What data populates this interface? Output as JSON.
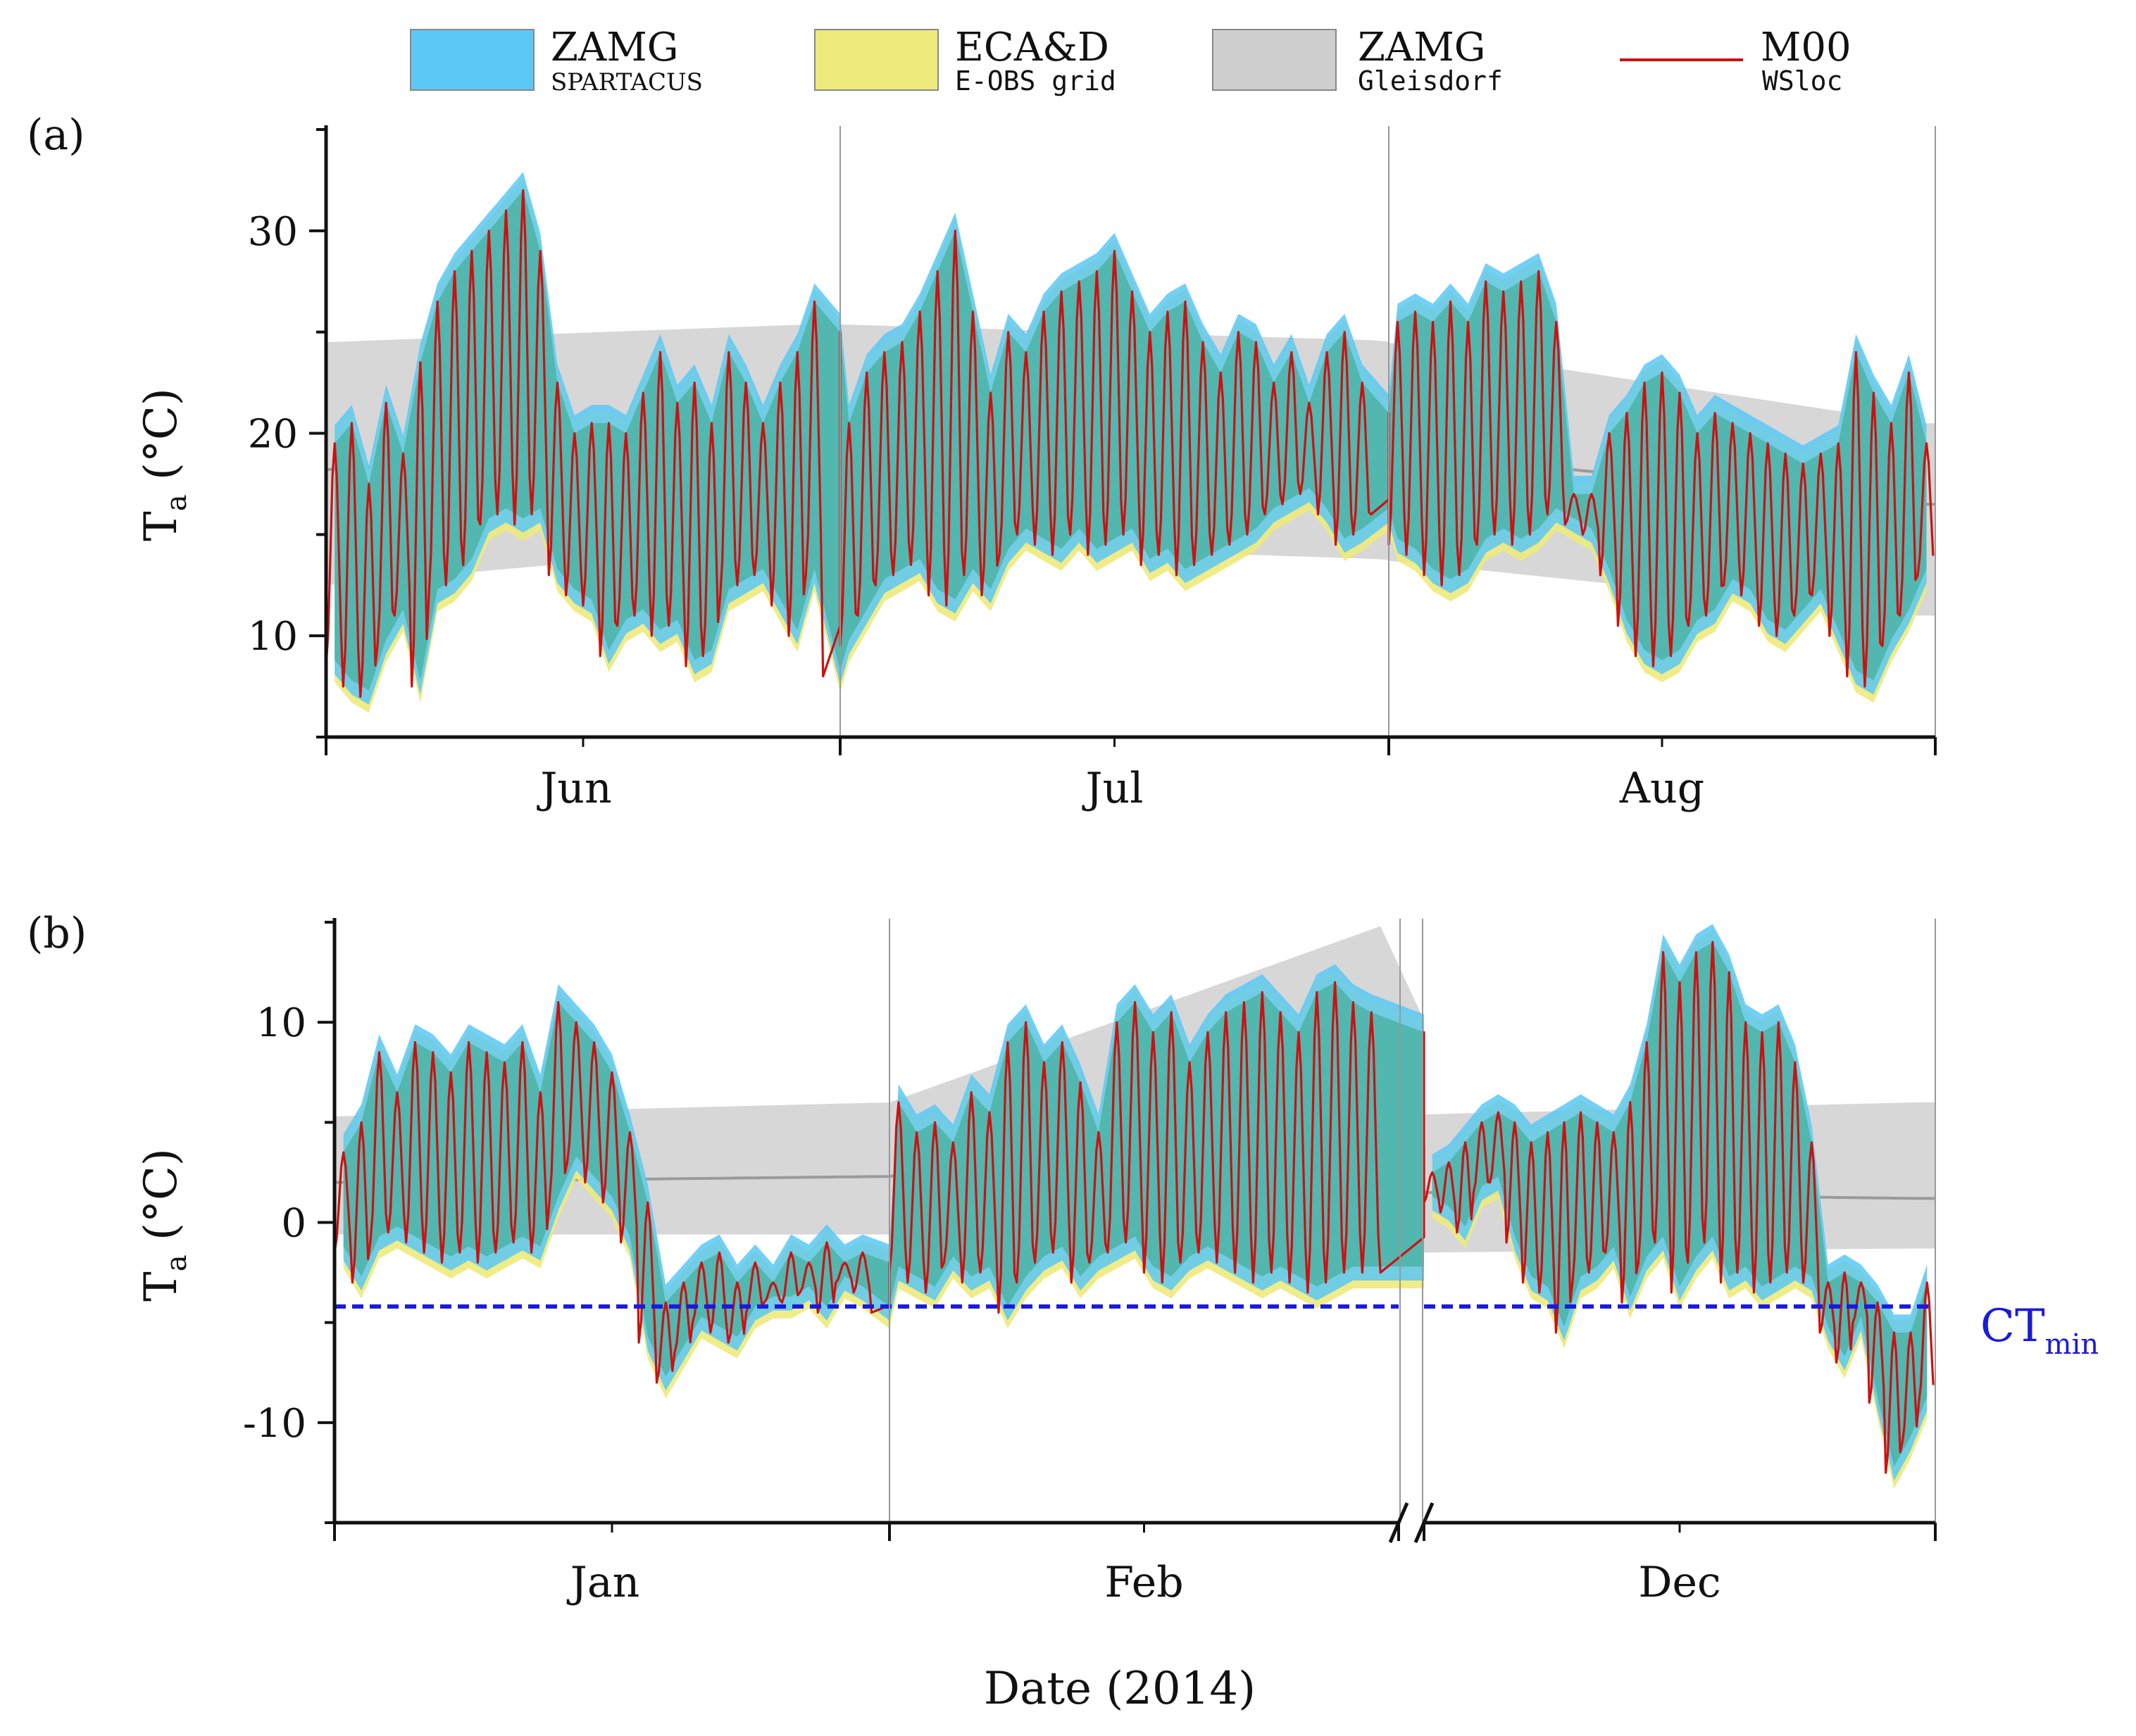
{
  "colors": {
    "spartacus": "#5bc8f5",
    "eobs": "#eeea7c",
    "gleisdorf": "#c9c9c9",
    "m00": "#cc1111",
    "overlap": "#4bb3a6",
    "ctmin": "#1a1adc",
    "axis": "#111111",
    "grid": "#999999"
  },
  "legend": [
    {
      "key": "spartacus",
      "title": "ZAMG",
      "sub": "SPARTACUS",
      "icon": "band-swatch"
    },
    {
      "key": "eobs",
      "title": "ECA&D",
      "sub": "E-OBS grid",
      "icon": "band-swatch"
    },
    {
      "key": "gleisdorf",
      "title": "ZAMG",
      "sub": "Gleisdorf",
      "icon": "band-swatch"
    },
    {
      "key": "m00",
      "title": "M00",
      "sub": "WSloc",
      "icon": "line-swatch"
    }
  ],
  "xlabel": "Date (2014)",
  "chart_data": [
    {
      "type": "area",
      "panel_label": "(a)",
      "ylabel_main": "T",
      "ylabel_sub": "a",
      "ylabel_unit": " (°C)",
      "ylim": [
        5,
        35
      ],
      "yticks": [
        10,
        20,
        30
      ],
      "segments": [
        {
          "month": "Jun",
          "days": 30
        },
        {
          "month": "Jul",
          "days": 31
        },
        {
          "month": "Aug",
          "days": 31
        }
      ],
      "series_desc": {
        "spartacus": "ZAMG SPARTACUS daily min/max envelope",
        "eobs": "ECA&D E-OBS grid daily min/max envelope",
        "gleisdorf": "ZAMG Gleisdorf climatological range",
        "m00": "M00 WSloc sub-daily air temperature"
      },
      "gleisdorf_band": {
        "day": [
          1,
          30,
          61,
          92
        ],
        "lower": [
          12.5,
          14.7,
          13.8,
          11.0
        ],
        "mid": [
          18.2,
          19.7,
          19.2,
          16.5
        ],
        "upper": [
          24.5,
          25.4,
          24.6,
          20.5
        ]
      },
      "daily_max": [
        19.5,
        20.5,
        17.5,
        21.5,
        19.0,
        23.5,
        26.5,
        28.0,
        29.0,
        30.0,
        31.0,
        32.0,
        29.0,
        22.5,
        20.0,
        20.5,
        20.5,
        20.0,
        22.0,
        24.0,
        21.5,
        22.5,
        20.5,
        24.0,
        22.5,
        20.5,
        22.5,
        24.0,
        26.5,
        25.0,
        20.5,
        23.0,
        24.0,
        24.5,
        26.0,
        28.0,
        30.0,
        26.0,
        22.0,
        25.0,
        24.0,
        26.0,
        27.0,
        27.5,
        28.0,
        29.0,
        27.0,
        25.0,
        26.0,
        26.5,
        24.5,
        23.0,
        25.0,
        24.5,
        22.5,
        24.0,
        21.5,
        24.0,
        25.0,
        22.5,
        21.0,
        25.5,
        26.0,
        25.5,
        26.5,
        25.5,
        27.5,
        27.0,
        27.5,
        28.0,
        25.5,
        17.0,
        17.0,
        20.0,
        21.0,
        22.5,
        23.0,
        22.0,
        20.0,
        21.0,
        20.5,
        20.0,
        19.5,
        19.0,
        18.5,
        19.0,
        19.5,
        24.0,
        22.0,
        20.5,
        23.0,
        19.5
      ],
      "daily_min": [
        8.5,
        7.5,
        7.0,
        9.5,
        11.0,
        7.5,
        12.0,
        12.5,
        13.5,
        15.5,
        16.0,
        15.5,
        16.0,
        13.0,
        12.0,
        11.5,
        9.0,
        10.5,
        11.0,
        10.0,
        10.5,
        8.5,
        9.0,
        12.0,
        12.5,
        13.0,
        11.5,
        10.0,
        13.0,
        8.0,
        9.5,
        11.0,
        12.5,
        13.0,
        13.5,
        12.0,
        11.5,
        13.0,
        12.0,
        14.0,
        15.0,
        14.5,
        14.0,
        15.0,
        14.0,
        14.5,
        15.0,
        13.5,
        14.0,
        13.0,
        13.5,
        14.0,
        14.5,
        15.0,
        16.0,
        16.5,
        17.0,
        16.0,
        14.5,
        15.0,
        16.0,
        14.5,
        14.0,
        13.0,
        12.5,
        13.0,
        14.5,
        15.0,
        14.5,
        15.0,
        16.0,
        15.5,
        15.0,
        13.0,
        10.5,
        9.0,
        8.5,
        9.0,
        10.5,
        11.0,
        12.5,
        12.0,
        10.5,
        10.0,
        11.0,
        12.0,
        10.0,
        8.0,
        7.5,
        9.5,
        11.0,
        13.0
      ]
    },
    {
      "type": "area",
      "panel_label": "(b)",
      "ylabel_main": "T",
      "ylabel_sub": "a",
      "ylabel_unit": " (°C)",
      "ylim": [
        -15,
        15
      ],
      "yticks": [
        -10,
        0,
        10
      ],
      "axis_break": true,
      "reference_line": {
        "label_main": "CT",
        "label_sub": "min",
        "value": -4.2,
        "style": "dashed"
      },
      "segments": [
        {
          "month": "Jan",
          "days": 31
        },
        {
          "month": "Feb",
          "days": 28
        },
        {
          "month": "Dec",
          "days": 31
        }
      ],
      "gleisdorf_band": {
        "day": [
          1,
          32,
          59,
          60,
          90
        ],
        "lower": [
          -0.6,
          -0.6,
          -0.6,
          -1.5,
          -1.3
        ],
        "mid": [
          2.0,
          2.3,
          6.0,
          1.5,
          1.2
        ],
        "upper": [
          5.3,
          6.0,
          14.8,
          5.4,
          6.0
        ]
      },
      "daily_max": [
        3.5,
        5.0,
        8.5,
        6.5,
        9.0,
        8.5,
        7.5,
        9.0,
        8.5,
        8.0,
        9.0,
        6.5,
        11.0,
        10.0,
        9.0,
        7.5,
        4.5,
        1.0,
        -4.0,
        -3.0,
        -2.0,
        -1.5,
        -3.0,
        -2.0,
        -3.0,
        -1.5,
        -2.0,
        -1.0,
        -2.0,
        -1.5,
        -2.0,
        6.0,
        4.5,
        5.0,
        4.0,
        6.5,
        5.5,
        9.0,
        10.0,
        8.0,
        9.0,
        7.0,
        4.5,
        10.0,
        11.0,
        9.5,
        10.5,
        8.0,
        9.5,
        10.5,
        11.0,
        11.5,
        10.5,
        9.5,
        11.5,
        12.0,
        11.0,
        10.5,
        9.5,
        2.5,
        3.0,
        4.0,
        5.0,
        5.5,
        5.0,
        4.0,
        4.5,
        5.0,
        5.5,
        5.0,
        4.5,
        6.0,
        9.0,
        13.5,
        12.0,
        13.5,
        14.0,
        12.5,
        10.0,
        9.5,
        10.0,
        8.0,
        4.0,
        -3.0,
        -2.5,
        -3.0,
        -4.0,
        -5.5,
        -5.5,
        -3.0
      ],
      "daily_min": [
        -1.5,
        -3.0,
        -1.0,
        -0.5,
        -1.0,
        -1.5,
        -2.0,
        -1.5,
        -2.0,
        -1.5,
        -1.0,
        -1.5,
        1.0,
        3.0,
        2.0,
        1.0,
        -1.0,
        -6.0,
        -8.0,
        -6.5,
        -5.0,
        -5.5,
        -6.0,
        -4.5,
        -4.0,
        -4.0,
        -3.5,
        -4.5,
        -3.0,
        -3.5,
        -4.5,
        -2.5,
        -3.0,
        -3.5,
        -2.0,
        -3.0,
        -2.5,
        -4.5,
        -3.0,
        -2.0,
        -1.5,
        -3.0,
        -2.0,
        -1.5,
        -1.0,
        -2.5,
        -3.0,
        -2.0,
        -1.5,
        -2.0,
        -2.5,
        -3.0,
        -2.5,
        -3.0,
        -3.5,
        -3.0,
        -2.5,
        -2.5,
        -2.5,
        1.0,
        0.5,
        -0.5,
        1.5,
        2.0,
        -1.0,
        -3.0,
        -3.5,
        -5.5,
        -3.0,
        -2.5,
        -1.5,
        -4.0,
        -2.0,
        -1.0,
        -3.5,
        -2.0,
        -1.0,
        -3.0,
        -2.5,
        -3.5,
        -3.0,
        -2.5,
        -3.0,
        -5.5,
        -7.0,
        -5.0,
        -9.0,
        -12.5,
        -11.0,
        -9.0
      ]
    }
  ]
}
